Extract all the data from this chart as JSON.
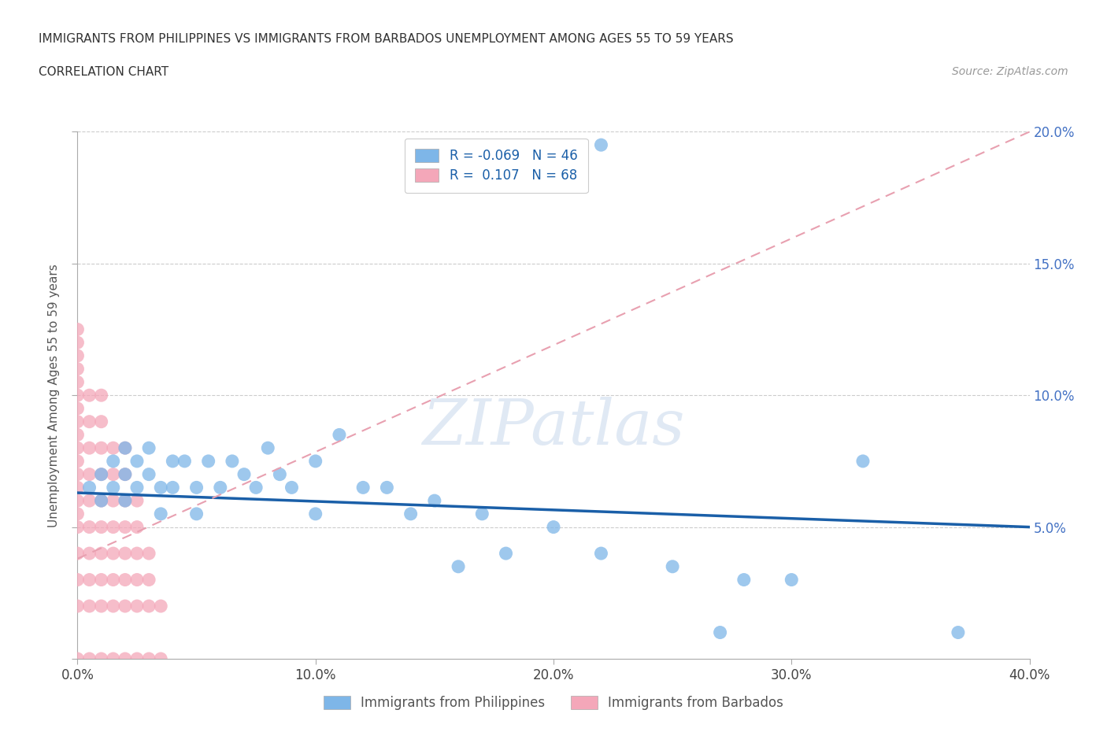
{
  "title_line1": "IMMIGRANTS FROM PHILIPPINES VS IMMIGRANTS FROM BARBADOS UNEMPLOYMENT AMONG AGES 55 TO 59 YEARS",
  "title_line2": "CORRELATION CHART",
  "source": "Source: ZipAtlas.com",
  "ylabel": "Unemployment Among Ages 55 to 59 years",
  "philippines_color": "#7EB6E8",
  "barbados_color": "#F4A7B9",
  "philippines_line_color": "#1A5FA8",
  "barbados_line_color": "#E8A0B0",
  "philippines_label": "Immigrants from Philippines",
  "barbados_label": "Immigrants from Barbados",
  "philippines_R": -0.069,
  "philippines_N": 46,
  "barbados_R": 0.107,
  "barbados_N": 68,
  "watermark": "ZIPatlas",
  "xmin": 0.0,
  "xmax": 0.4,
  "ymin": 0.0,
  "ymax": 0.2,
  "xticks": [
    0.0,
    0.1,
    0.2,
    0.3,
    0.4
  ],
  "yticks": [
    0.0,
    0.05,
    0.1,
    0.15,
    0.2
  ],
  "philippines_x": [
    0.005,
    0.01,
    0.01,
    0.015,
    0.015,
    0.02,
    0.02,
    0.02,
    0.025,
    0.025,
    0.03,
    0.03,
    0.035,
    0.035,
    0.04,
    0.04,
    0.045,
    0.05,
    0.05,
    0.055,
    0.06,
    0.065,
    0.07,
    0.075,
    0.08,
    0.085,
    0.09,
    0.1,
    0.1,
    0.11,
    0.12,
    0.13,
    0.14,
    0.15,
    0.16,
    0.17,
    0.18,
    0.2,
    0.22,
    0.25,
    0.27,
    0.28,
    0.3,
    0.33,
    0.37,
    0.22
  ],
  "philippines_y": [
    0.065,
    0.07,
    0.06,
    0.075,
    0.065,
    0.08,
    0.07,
    0.06,
    0.075,
    0.065,
    0.08,
    0.07,
    0.065,
    0.055,
    0.075,
    0.065,
    0.075,
    0.065,
    0.055,
    0.075,
    0.065,
    0.075,
    0.07,
    0.065,
    0.08,
    0.07,
    0.065,
    0.075,
    0.055,
    0.085,
    0.065,
    0.065,
    0.055,
    0.06,
    0.035,
    0.055,
    0.04,
    0.05,
    0.04,
    0.035,
    0.01,
    0.03,
    0.03,
    0.075,
    0.01,
    0.195
  ],
  "barbados_x": [
    0.0,
    0.0,
    0.0,
    0.0,
    0.0,
    0.0,
    0.0,
    0.0,
    0.0,
    0.0,
    0.0,
    0.0,
    0.0,
    0.0,
    0.0,
    0.0,
    0.0,
    0.0,
    0.0,
    0.0,
    0.005,
    0.005,
    0.005,
    0.005,
    0.005,
    0.005,
    0.005,
    0.005,
    0.005,
    0.005,
    0.01,
    0.01,
    0.01,
    0.01,
    0.01,
    0.01,
    0.01,
    0.01,
    0.01,
    0.01,
    0.015,
    0.015,
    0.015,
    0.015,
    0.015,
    0.015,
    0.015,
    0.015,
    0.02,
    0.02,
    0.02,
    0.02,
    0.02,
    0.02,
    0.02,
    0.02,
    0.025,
    0.025,
    0.025,
    0.025,
    0.025,
    0.025,
    0.03,
    0.03,
    0.03,
    0.03,
    0.035,
    0.035
  ],
  "barbados_y": [
    0.0,
    0.02,
    0.03,
    0.04,
    0.05,
    0.055,
    0.06,
    0.065,
    0.07,
    0.075,
    0.08,
    0.085,
    0.09,
    0.095,
    0.1,
    0.105,
    0.11,
    0.115,
    0.12,
    0.125,
    0.0,
    0.02,
    0.03,
    0.04,
    0.05,
    0.06,
    0.07,
    0.08,
    0.09,
    0.1,
    0.0,
    0.02,
    0.03,
    0.04,
    0.05,
    0.06,
    0.07,
    0.08,
    0.09,
    0.1,
    0.0,
    0.02,
    0.03,
    0.04,
    0.05,
    0.06,
    0.07,
    0.08,
    0.0,
    0.02,
    0.03,
    0.04,
    0.05,
    0.06,
    0.07,
    0.08,
    0.0,
    0.02,
    0.03,
    0.04,
    0.05,
    0.06,
    0.0,
    0.02,
    0.03,
    0.04,
    0.0,
    0.02
  ],
  "phil_trend_x": [
    0.0,
    0.4
  ],
  "phil_trend_y": [
    0.063,
    0.05
  ],
  "barb_trend_x": [
    0.0,
    0.4
  ],
  "barb_trend_y": [
    0.038,
    0.2
  ]
}
